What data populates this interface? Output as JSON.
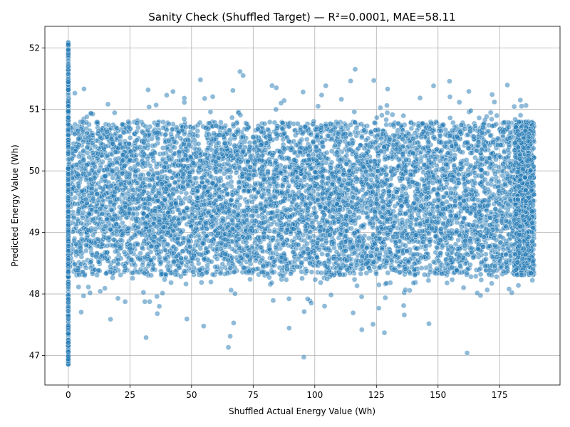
{
  "chart_data": {
    "type": "scatter",
    "title": "Sanity Check (Shuffled Target) — R²=0.0001, MAE=58.11",
    "xlabel": "Shuffled Actual Energy Value (Wh)",
    "ylabel": "Predicted Energy Value (Wh)",
    "xlim": [
      -9.5,
      199.5
    ],
    "ylim": [
      46.52,
      52.35
    ],
    "xticks": [
      0,
      25,
      50,
      75,
      100,
      125,
      150,
      175
    ],
    "yticks": [
      47,
      48,
      49,
      50,
      51,
      52
    ],
    "grid": true,
    "point_color": "#1f77b4",
    "point_edge_color": "#ffffff",
    "point_alpha": 0.5,
    "distribution": {
      "x_range": [
        0,
        189
      ],
      "y_core_range": [
        48.3,
        50.8
      ],
      "y_full_range": [
        46.8,
        52.1
      ],
      "x_zero_cluster": {
        "x": 0,
        "y_range": [
          46.85,
          52.1
        ]
      }
    }
  }
}
